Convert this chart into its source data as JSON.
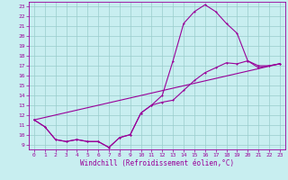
{
  "xlabel": "Windchill (Refroidissement éolien,°C)",
  "xlim": [
    -0.5,
    23.5
  ],
  "ylim": [
    8.5,
    23.5
  ],
  "yticks": [
    9,
    10,
    11,
    12,
    13,
    14,
    15,
    16,
    17,
    18,
    19,
    20,
    21,
    22,
    23
  ],
  "xticks": [
    0,
    1,
    2,
    3,
    4,
    5,
    6,
    7,
    8,
    9,
    10,
    11,
    12,
    13,
    14,
    15,
    16,
    17,
    18,
    19,
    20,
    21,
    22,
    23
  ],
  "bg_color": "#c8eef0",
  "line_color": "#990099",
  "grid_color": "#99cccc",
  "line1_x": [
    0,
    1,
    2,
    3,
    4,
    5,
    6,
    7,
    8,
    9,
    10,
    11,
    12,
    13,
    14,
    15,
    16,
    17,
    18,
    19,
    20,
    21,
    22,
    23
  ],
  "line1_y": [
    11.5,
    10.8,
    9.5,
    9.3,
    9.5,
    9.3,
    9.3,
    8.7,
    9.7,
    10.0,
    12.2,
    13.0,
    14.0,
    17.5,
    21.3,
    22.5,
    23.2,
    22.5,
    21.3,
    20.3,
    17.5,
    16.8,
    17.0,
    17.2
  ],
  "line2_x": [
    0,
    1,
    2,
    3,
    4,
    5,
    6,
    7,
    8,
    9,
    10,
    11,
    12,
    13,
    14,
    15,
    16,
    17,
    18,
    19,
    20,
    21,
    22,
    23
  ],
  "line2_y": [
    11.5,
    10.8,
    9.5,
    9.3,
    9.5,
    9.3,
    9.3,
    8.7,
    9.7,
    10.0,
    12.2,
    13.0,
    13.3,
    13.5,
    14.5,
    15.5,
    16.3,
    16.8,
    17.3,
    17.2,
    17.5,
    17.0,
    17.0,
    17.2
  ],
  "line3_x": [
    0,
    23
  ],
  "line3_y": [
    11.5,
    17.2
  ]
}
